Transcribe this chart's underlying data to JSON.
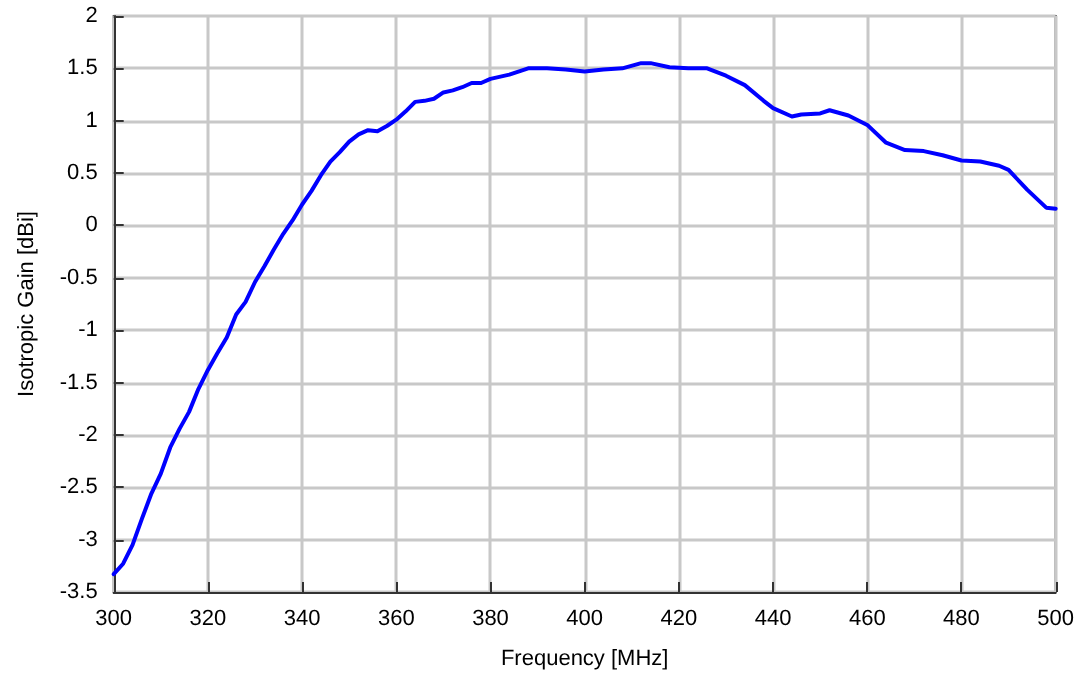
{
  "chart_data": {
    "type": "line",
    "xlabel": "Frequency [MHz]",
    "ylabel": "Isotropic Gain [dBi]",
    "x": [
      300,
      302,
      304,
      306,
      308,
      310,
      312,
      314,
      316,
      318,
      320,
      322,
      324,
      326,
      328,
      330,
      332,
      334,
      336,
      338,
      340,
      342,
      344,
      346,
      348,
      350,
      352,
      354,
      356,
      358,
      360,
      362,
      364,
      366,
      368,
      370,
      372,
      374,
      376,
      378,
      380,
      384,
      388,
      392,
      396,
      400,
      404,
      408,
      412,
      414,
      418,
      422,
      426,
      430,
      434,
      438,
      440,
      444,
      446,
      450,
      452,
      456,
      460,
      464,
      468,
      472,
      476,
      480,
      484,
      488,
      490,
      494,
      498,
      500
    ],
    "series": [
      {
        "color": "#0000ff",
        "values": [
          -3.33,
          -3.23,
          -3.05,
          -2.8,
          -2.56,
          -2.37,
          -2.12,
          -1.94,
          -1.78,
          -1.56,
          -1.38,
          -1.22,
          -1.07,
          -0.85,
          -0.73,
          -0.54,
          -0.39,
          -0.23,
          -0.08,
          0.05,
          0.2,
          0.33,
          0.48,
          0.61,
          0.7,
          0.8,
          0.87,
          0.91,
          0.9,
          0.95,
          1.01,
          1.09,
          1.18,
          1.19,
          1.21,
          1.27,
          1.29,
          1.32,
          1.36,
          1.36,
          1.4,
          1.44,
          1.5,
          1.5,
          1.49,
          1.47,
          1.49,
          1.5,
          1.55,
          1.55,
          1.51,
          1.5,
          1.5,
          1.43,
          1.34,
          1.19,
          1.12,
          1.04,
          1.06,
          1.07,
          1.1,
          1.05,
          0.96,
          0.79,
          0.72,
          0.71,
          0.67,
          0.62,
          0.61,
          0.57,
          0.53,
          0.34,
          0.17,
          0.16
        ]
      }
    ],
    "xlim": [
      300,
      500
    ],
    "xticks": [
      300,
      320,
      340,
      360,
      380,
      400,
      420,
      440,
      460,
      480,
      500
    ],
    "ylim": [
      -3.5,
      2
    ],
    "yticks": [
      -3.5,
      -3,
      -2.5,
      -2,
      -1.5,
      -1,
      -0.5,
      0,
      0.5,
      1,
      1.5,
      2
    ],
    "grid": true,
    "marker": "none",
    "line_style": "solid"
  }
}
